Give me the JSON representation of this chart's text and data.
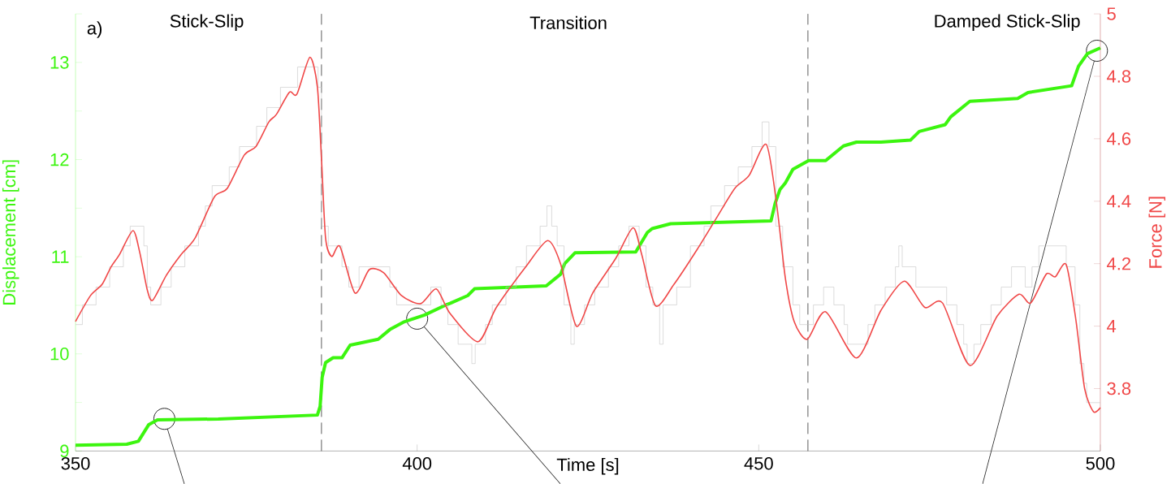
{
  "chart_data": {
    "type": "line",
    "xlabel": "Time [s]",
    "ylabel": "Displacement [cm]",
    "y2label": "Force [N]",
    "xlim": [
      350,
      500
    ],
    "xticks": [
      350,
      400,
      450,
      500
    ],
    "ylim": [
      9,
      13.5
    ],
    "yticks": [
      9,
      {
        "value": 9.5,
        "label": null
      },
      10,
      {
        "value": 10.5,
        "label": null
      },
      11,
      {
        "value": 11.5,
        "label": null
      },
      12,
      {
        "value": 12.5,
        "label": null
      },
      13,
      {
        "value": 13.5,
        "label": null
      }
    ],
    "y2lim": [
      3.6,
      5
    ],
    "y2ticks": [
      3.8,
      4,
      4.2,
      4.4,
      4.6,
      4.8,
      5
    ],
    "ref_lines": [
      {
        "axis": "x",
        "value": 386,
        "line_style": "dashed",
        "color": "#333333"
      },
      {
        "axis": "x",
        "value": 457.2,
        "line_style": "dashed",
        "color": "#333333"
      }
    ],
    "annotations": [
      "a)",
      "Stick-Slip",
      "Transition",
      "Damped Stick-Slip"
    ],
    "series": [
      {
        "type": "step",
        "axis": "y2",
        "color": "#c4c4c4",
        "x": [
          350,
          351,
          353,
          355,
          357,
          358,
          360,
          360.5,
          361,
          362.5,
          364,
          366,
          368,
          369,
          370,
          372.5,
          374,
          376.5,
          378,
          380,
          382.5,
          385.5,
          386,
          387,
          389,
          390,
          391.5,
          396,
          397,
          402,
          403.5,
          404.5,
          406,
          408,
          408.5,
          410,
          411,
          413,
          414.5,
          416,
          418,
          419,
          419.7,
          420.5,
          421.5,
          422.5,
          423,
          424.5,
          426,
          428,
          429.5,
          431,
          432.5,
          433.5,
          434.5,
          435.5,
          436,
          438,
          440,
          442,
          443,
          445,
          447,
          449,
          450.5,
          451.5,
          452.5,
          453.5,
          455,
          456,
          458,
          459.5,
          461,
          462.5,
          463,
          466,
          467,
          468.5,
          470,
          470.5,
          471,
          473,
          476,
          477.5,
          479,
          480,
          480.5,
          481.5,
          482.5,
          484,
          485.5,
          487,
          489,
          490,
          491,
          495,
          496.3,
          497,
          497.6,
          498,
          500
        ],
        "values": [
          4.005,
          4.068,
          4.125,
          4.19,
          4.257,
          4.32,
          4.257,
          4.125,
          4.068,
          4.125,
          4.19,
          4.257,
          4.32,
          4.385,
          4.45,
          4.51,
          4.575,
          4.64,
          4.7,
          4.765,
          4.83,
          4.765,
          4.32,
          4.257,
          4.19,
          4.125,
          4.19,
          4.125,
          4.068,
          4.125,
          4.068,
          4.005,
          3.942,
          3.88,
          3.942,
          4.005,
          4.068,
          4.125,
          4.19,
          4.257,
          4.32,
          4.385,
          4.32,
          4.257,
          4.068,
          3.942,
          4.005,
          4.068,
          4.125,
          4.19,
          4.257,
          4.32,
          4.257,
          4.125,
          4.068,
          3.942,
          4.068,
          4.125,
          4.257,
          4.32,
          4.385,
          4.45,
          4.51,
          4.575,
          4.654,
          4.575,
          4.32,
          4.19,
          4.068,
          4.005,
          4.068,
          4.125,
          4.068,
          4.005,
          3.942,
          4.005,
          4.068,
          4.125,
          4.19,
          4.257,
          4.19,
          4.125,
          4.125,
          4.068,
          4.005,
          3.942,
          3.88,
          3.942,
          4.005,
          4.068,
          4.125,
          4.19,
          4.125,
          4.19,
          4.257,
          4.19,
          4.068,
          3.88,
          3.817,
          3.755,
          3.755
        ]
      },
      {
        "type": "line",
        "axis": "y",
        "color": "#3cf50f",
        "x": [
          350,
          357.5,
          359.2,
          360.7,
          362,
          370.9,
          385.4,
          385.8,
          386.1,
          386.6,
          387.7,
          389,
          390.2,
          394.3,
          396,
          398.1,
          401.1,
          404.4,
          404.8,
          407.4,
          408.4,
          418.9,
          421,
          421.6,
          423.1,
          432,
          433.7,
          434.4,
          437.1,
          451.8,
          452.4,
          453.1,
          453.9,
          455,
          457.3,
          459.8,
          462.4,
          464.3,
          467.9,
          472.2,
          473.5,
          477.3,
          478.1,
          480.9,
          487.9,
          489.4,
          495.8,
          496.8,
          498.1,
          500
        ],
        "values": [
          9.06,
          9.07,
          9.1,
          9.27,
          9.32,
          9.33,
          9.37,
          9.46,
          9.76,
          9.91,
          9.96,
          9.96,
          10.09,
          10.15,
          10.25,
          10.33,
          10.4,
          10.51,
          10.52,
          10.6,
          10.67,
          10.7,
          10.82,
          10.93,
          11.04,
          11.05,
          11.25,
          11.29,
          11.34,
          11.37,
          11.55,
          11.69,
          11.76,
          11.9,
          11.99,
          11.99,
          12.14,
          12.18,
          12.18,
          12.2,
          12.29,
          12.36,
          12.44,
          12.6,
          12.63,
          12.69,
          12.76,
          12.96,
          13.09,
          13.15
        ]
      },
      {
        "type": "line",
        "axis": "y2",
        "color": "#f04848",
        "x": [
          350,
          352.2,
          353.9,
          355.2,
          356.4,
          358.4,
          359.4,
          360.5,
          361.3,
          363.3,
          365.4,
          367.5,
          370.3,
          372.2,
          374.7,
          376.4,
          378.3,
          379.4,
          381.3,
          382.4,
          384.3,
          385.4,
          386,
          386.6,
          387.5,
          388.7,
          390.9,
          393,
          395.1,
          397.7,
          400.5,
          402.8,
          404.8,
          408.9,
          411.6,
          415.9,
          419.1,
          421,
          423.3,
          425.7,
          429.1,
          431.6,
          432.9,
          434.9,
          437.6,
          441,
          444,
          446.5,
          448.6,
          451.1,
          452.6,
          453.9,
          455.2,
          457.1,
          459.8,
          464.3,
          467.9,
          471.3,
          474.3,
          476.9,
          480.9,
          484.9,
          488.1,
          489.8,
          492.1,
          493.4,
          495,
          496.4,
          497.7,
          499,
          500
        ],
        "values": [
          4.015,
          4.098,
          4.134,
          4.19,
          4.228,
          4.306,
          4.236,
          4.116,
          4.083,
          4.163,
          4.228,
          4.282,
          4.413,
          4.441,
          4.548,
          4.575,
          4.654,
          4.678,
          4.749,
          4.743,
          4.861,
          4.766,
          4.535,
          4.282,
          4.223,
          4.255,
          4.106,
          4.181,
          4.171,
          4.098,
          4.072,
          4.119,
          4.041,
          3.95,
          4.06,
          4.19,
          4.274,
          4.199,
          4.0,
          4.106,
          4.218,
          4.315,
          4.227,
          4.065,
          4.134,
          4.246,
          4.353,
          4.441,
          4.483,
          4.582,
          4.394,
          4.153,
          4.014,
          3.958,
          4.046,
          3.898,
          4.051,
          4.144,
          4.06,
          4.074,
          3.874,
          4.032,
          4.102,
          4.074,
          4.167,
          4.158,
          4.197,
          4.023,
          3.8,
          3.726,
          3.739
        ]
      }
    ]
  }
}
